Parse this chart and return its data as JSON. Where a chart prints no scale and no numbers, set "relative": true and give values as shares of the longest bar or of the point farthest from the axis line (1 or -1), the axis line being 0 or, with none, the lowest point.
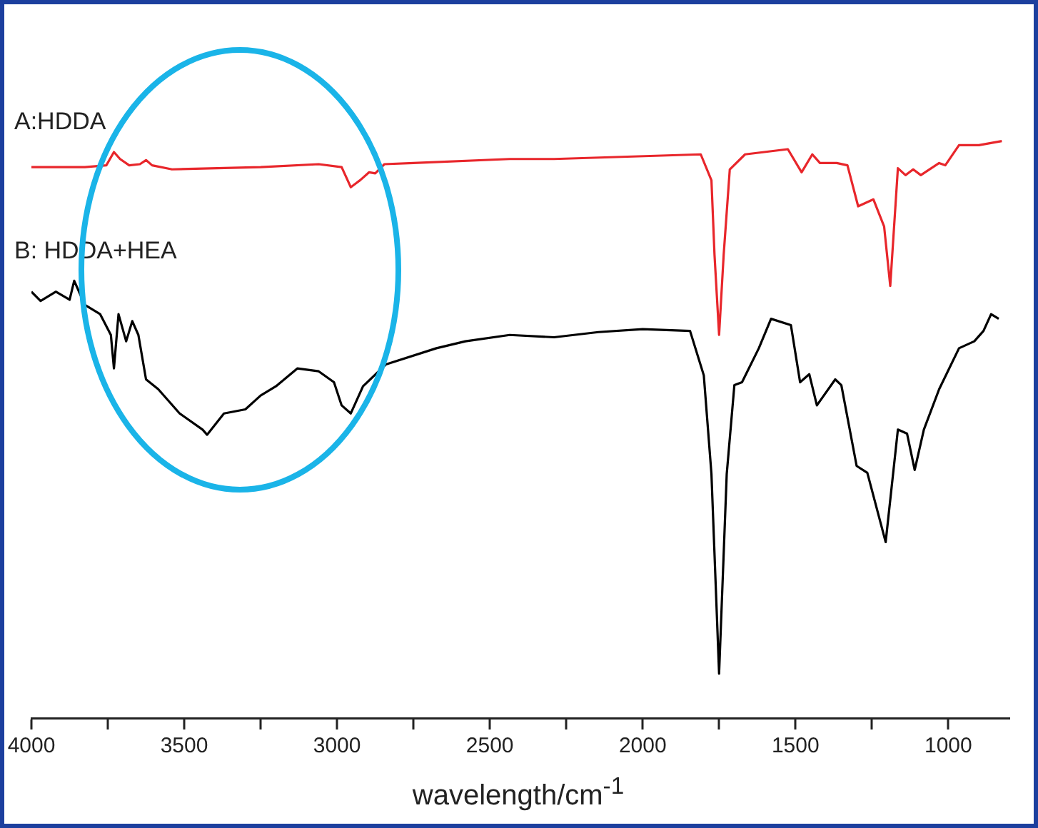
{
  "chart_data": {
    "type": "line",
    "relative": true,
    "xlabel": "wavelength/cm$^{-1}$",
    "xlim": [
      4000,
      800
    ],
    "xticks": [
      4000,
      {
        "value": 3750,
        "label": null
      },
      3500,
      {
        "value": 3250,
        "label": null
      },
      3000,
      {
        "value": 2750,
        "label": null
      },
      2500,
      {
        "value": 2250,
        "label": null
      },
      2000,
      {
        "value": 1750,
        "label": null
      },
      1500,
      {
        "value": 1250,
        "label": null
      },
      1000
    ],
    "legend": false,
    "grid": false,
    "marker": "none",
    "line_style": "solid",
    "series": [
      {
        "name": "A:HDDA",
        "color": "#e8262b",
        "x": [
          4000,
          3825,
          3755,
          3730,
          3710,
          3680,
          3645,
          3625,
          3605,
          3540,
          3250,
          3060,
          2985,
          2955,
          2925,
          2895,
          2875,
          2845,
          2750,
          2435,
          2290,
          1810,
          1775,
          1765,
          1750,
          1735,
          1715,
          1665,
          1525,
          1480,
          1445,
          1420,
          1365,
          1330,
          1295,
          1245,
          1210,
          1190,
          1165,
          1140,
          1115,
          1090,
          1030,
          1010,
          965,
          900,
          825
        ],
        "values": [
          0.955,
          0.955,
          0.958,
          0.981,
          0.969,
          0.958,
          0.96,
          0.967,
          0.958,
          0.951,
          0.955,
          0.96,
          0.955,
          0.92,
          0.932,
          0.946,
          0.944,
          0.96,
          0.962,
          0.969,
          0.969,
          0.977,
          0.932,
          0.803,
          0.664,
          0.803,
          0.951,
          0.977,
          0.986,
          0.946,
          0.977,
          0.962,
          0.962,
          0.958,
          0.887,
          0.899,
          0.852,
          0.749,
          0.953,
          0.941,
          0.951,
          0.941,
          0.962,
          0.958,
          0.993,
          0.993,
          1
        ]
      },
      {
        "name": "B: HDDA+HEA",
        "color": "#000000",
        "x": [
          4000,
          3970,
          3920,
          3875,
          3860,
          3825,
          3775,
          3740,
          3730,
          3715,
          3690,
          3670,
          3650,
          3625,
          3585,
          3515,
          3440,
          3425,
          3370,
          3300,
          3250,
          3200,
          3130,
          3060,
          3010,
          2985,
          2955,
          2915,
          2840,
          2675,
          2580,
          2435,
          2290,
          2145,
          2000,
          1845,
          1800,
          1775,
          1750,
          1725,
          1700,
          1675,
          1620,
          1580,
          1515,
          1485,
          1455,
          1430,
          1370,
          1350,
          1300,
          1265,
          1205,
          1165,
          1135,
          1110,
          1080,
          1030,
          965,
          915,
          885,
          860,
          835
        ],
        "values": [
          0.739,
          0.723,
          0.739,
          0.725,
          0.758,
          0.716,
          0.7,
          0.664,
          0.606,
          0.7,
          0.653,
          0.688,
          0.664,
          0.587,
          0.57,
          0.528,
          0.5,
          0.491,
          0.528,
          0.535,
          0.559,
          0.575,
          0.606,
          0.601,
          0.582,
          0.542,
          0.528,
          0.575,
          0.613,
          0.641,
          0.653,
          0.664,
          0.66,
          0.669,
          0.674,
          0.671,
          0.594,
          0.423,
          0.077,
          0.423,
          0.577,
          0.582,
          0.641,
          0.692,
          0.681,
          0.582,
          0.596,
          0.542,
          0.587,
          0.577,
          0.437,
          0.425,
          0.305,
          0.5,
          0.493,
          0.43,
          0.5,
          0.57,
          0.641,
          0.653,
          0.671,
          0.7,
          0.692
        ]
      }
    ]
  }
}
